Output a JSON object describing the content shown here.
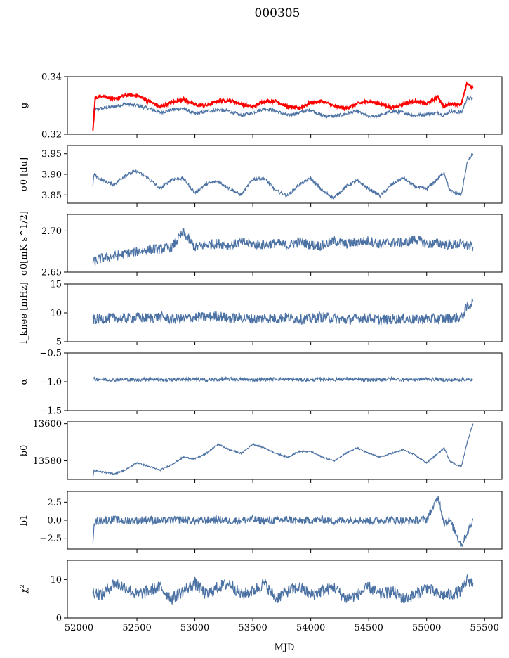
{
  "figure": {
    "title": "000305",
    "xlabel": "MJD",
    "colors": {
      "series": "#4c72a4",
      "highlight": "#ff0000"
    }
  },
  "chart_data": [
    {
      "type": "line",
      "id": "g",
      "ylabel": "g",
      "xlim": [
        51900,
        55650
      ],
      "ylim": [
        0.32,
        0.34
      ],
      "yticks": [
        0.32,
        0.34
      ],
      "yticklabels": [
        "0.32",
        "0.34"
      ],
      "series": [
        {
          "x": [
            52120,
            52130,
            52200,
            52300,
            52400,
            52500,
            52600,
            52700,
            52800,
            52900,
            53000,
            53100,
            53200,
            53300,
            53400,
            53500,
            53600,
            53700,
            53800,
            53900,
            54000,
            54100,
            54200,
            54300,
            54400,
            54500,
            54600,
            54700,
            54800,
            54900,
            55000,
            55100,
            55150,
            55200,
            55300,
            55350,
            55400
          ],
          "y": [
            0.3255,
            0.3285,
            0.329,
            0.3295,
            0.3305,
            0.33,
            0.329,
            0.3275,
            0.3285,
            0.329,
            0.327,
            0.328,
            0.3285,
            0.328,
            0.3265,
            0.3275,
            0.329,
            0.328,
            0.3265,
            0.3275,
            0.3285,
            0.3265,
            0.3262,
            0.327,
            0.328,
            0.326,
            0.3265,
            0.328,
            0.3275,
            0.3265,
            0.327,
            0.3275,
            0.3265,
            0.328,
            0.3275,
            0.3325,
            0.3325
          ]
        },
        {
          "x": [
            52120,
            52140,
            52200,
            52300,
            52400,
            52500,
            52600,
            52700,
            52800,
            52900,
            53000,
            53100,
            53200,
            53300,
            53400,
            53500,
            53600,
            53700,
            53800,
            53900,
            54000,
            54100,
            54200,
            54300,
            54400,
            54500,
            54600,
            54700,
            54800,
            54900,
            55000,
            55100,
            55150,
            55200,
            55300,
            55350,
            55400
          ],
          "y": [
            0.321,
            0.3325,
            0.3335,
            0.332,
            0.3335,
            0.3335,
            0.3315,
            0.3295,
            0.331,
            0.3322,
            0.3302,
            0.33,
            0.3315,
            0.3318,
            0.3305,
            0.3295,
            0.3315,
            0.3315,
            0.3295,
            0.329,
            0.331,
            0.3315,
            0.3298,
            0.329,
            0.3305,
            0.3315,
            0.3305,
            0.3292,
            0.3305,
            0.3315,
            0.3305,
            0.333,
            0.3295,
            0.3305,
            0.3305,
            0.3378,
            0.336
          ]
        }
      ]
    },
    {
      "type": "line",
      "id": "sigma0-du",
      "ylabel": "σ0 [du]",
      "xlim": [
        51900,
        55650
      ],
      "ylim": [
        3.83,
        3.97
      ],
      "yticks": [
        3.85,
        3.9,
        3.95
      ],
      "yticklabels": [
        "3.85",
        "3.90",
        "3.95"
      ],
      "series": [
        {
          "x": [
            52120,
            52130,
            52200,
            52300,
            52400,
            52500,
            52600,
            52700,
            52800,
            52900,
            53000,
            53100,
            53200,
            53300,
            53400,
            53500,
            53600,
            53700,
            53800,
            53900,
            54000,
            54100,
            54200,
            54300,
            54400,
            54500,
            54600,
            54700,
            54800,
            54900,
            55000,
            55100,
            55150,
            55200,
            55300,
            55350,
            55400
          ],
          "y": [
            3.875,
            3.9,
            3.885,
            3.875,
            3.898,
            3.908,
            3.89,
            3.865,
            3.888,
            3.89,
            3.855,
            3.877,
            3.883,
            3.865,
            3.85,
            3.888,
            3.89,
            3.86,
            3.848,
            3.875,
            3.89,
            3.86,
            3.843,
            3.87,
            3.885,
            3.865,
            3.848,
            3.875,
            3.892,
            3.87,
            3.865,
            3.89,
            3.905,
            3.86,
            3.85,
            3.93,
            3.95
          ]
        }
      ]
    },
    {
      "type": "line",
      "id": "sigma0-mk",
      "ylabel": "σ0[mK s^1/2]",
      "xlim": [
        51900,
        55650
      ],
      "ylim": [
        2.65,
        2.72
      ],
      "yticks": [
        2.65,
        2.7
      ],
      "yticklabels": [
        "2.65",
        "2.70"
      ],
      "series": [
        {
          "x": [
            52120,
            52200,
            52300,
            52400,
            52500,
            52600,
            52700,
            52800,
            52900,
            53000,
            53100,
            53200,
            53300,
            53400,
            53500,
            53600,
            53700,
            53800,
            53900,
            54000,
            54100,
            54200,
            54300,
            54400,
            54500,
            54600,
            54700,
            54800,
            54900,
            55000,
            55100,
            55200,
            55300,
            55350,
            55400
          ],
          "y": [
            2.662,
            2.667,
            2.669,
            2.672,
            2.675,
            2.677,
            2.678,
            2.68,
            2.698,
            2.68,
            2.683,
            2.685,
            2.682,
            2.686,
            2.684,
            2.683,
            2.685,
            2.682,
            2.687,
            2.683,
            2.682,
            2.688,
            2.684,
            2.686,
            2.688,
            2.684,
            2.686,
            2.685,
            2.69,
            2.684,
            2.685,
            2.683,
            2.684,
            2.682,
            2.68
          ]
        }
      ]
    },
    {
      "type": "line",
      "id": "fknee",
      "ylabel": "f_knee [mHz]",
      "xlim": [
        51900,
        55650
      ],
      "ylim": [
        5,
        15
      ],
      "yticks": [
        5,
        10,
        15
      ],
      "yticklabels": [
        "5",
        "10",
        "15"
      ],
      "series": [
        {
          "x": [
            52120,
            52200,
            52300,
            52400,
            52500,
            52600,
            52700,
            52800,
            52900,
            53000,
            53100,
            53200,
            53300,
            53400,
            53500,
            53600,
            53700,
            53800,
            53900,
            54000,
            54100,
            54200,
            54300,
            54400,
            54500,
            54600,
            54700,
            54800,
            54900,
            55000,
            55100,
            55200,
            55300,
            55350,
            55400
          ],
          "y": [
            8.8,
            9.0,
            9.1,
            9.0,
            9.2,
            9.1,
            9.3,
            8.9,
            9.0,
            9.3,
            9.2,
            9.5,
            9.0,
            9.2,
            8.9,
            9.1,
            9.0,
            9.2,
            8.9,
            9.0,
            9.3,
            9.0,
            8.8,
            9.0,
            9.1,
            8.8,
            8.9,
            9.0,
            8.8,
            9.0,
            8.9,
            9.1,
            9.2,
            11.0,
            12.0
          ]
        }
      ]
    },
    {
      "type": "line",
      "id": "alpha",
      "ylabel": "α",
      "xlim": [
        51900,
        55650
      ],
      "ylim": [
        -1.5,
        -0.5
      ],
      "yticks": [
        -1.5,
        -1.0,
        -0.5
      ],
      "yticklabels": [
        "−1.5",
        "−1.0",
        "−0.5"
      ],
      "series": [
        {
          "x": [
            52120,
            52200,
            52300,
            52400,
            52500,
            52600,
            52700,
            52800,
            52900,
            53000,
            53100,
            53200,
            53300,
            53400,
            53500,
            53600,
            53700,
            53800,
            53900,
            54000,
            54100,
            54200,
            54300,
            54400,
            54500,
            54600,
            54700,
            54800,
            54900,
            55000,
            55100,
            55200,
            55300,
            55400
          ],
          "y": [
            -0.95,
            -0.96,
            -0.97,
            -0.96,
            -0.97,
            -0.95,
            -0.97,
            -0.96,
            -0.95,
            -0.96,
            -0.97,
            -0.96,
            -0.95,
            -0.96,
            -0.97,
            -0.96,
            -0.95,
            -0.96,
            -0.96,
            -0.97,
            -0.95,
            -0.96,
            -0.95,
            -0.96,
            -0.97,
            -0.96,
            -0.95,
            -0.96,
            -0.96,
            -0.95,
            -0.96,
            -0.97,
            -0.96,
            -0.97
          ]
        }
      ]
    },
    {
      "type": "line",
      "id": "b0",
      "ylabel": "b0",
      "xlim": [
        51900,
        55650
      ],
      "ylim": [
        13570,
        13601
      ],
      "yticks": [
        13580,
        13600
      ],
      "yticklabels": [
        "13580",
        "13600"
      ],
      "series": [
        {
          "x": [
            52120,
            52130,
            52200,
            52300,
            52400,
            52500,
            52600,
            52700,
            52800,
            52900,
            53000,
            53100,
            53200,
            53300,
            53400,
            53500,
            53600,
            53700,
            53800,
            53900,
            54000,
            54100,
            54200,
            54300,
            54400,
            54500,
            54600,
            54700,
            54800,
            54900,
            55000,
            55100,
            55150,
            55200,
            55250,
            55300,
            55350,
            55400
          ],
          "y": [
            13571,
            13575,
            13574,
            13573,
            13575,
            13579,
            13577,
            13575,
            13578,
            13582,
            13581,
            13584,
            13589,
            13586,
            13584,
            13589,
            13587,
            13584,
            13582,
            13585,
            13585,
            13582,
            13580,
            13584,
            13587,
            13584,
            13582,
            13584,
            13586,
            13583,
            13579,
            13584,
            13587,
            13580,
            13578,
            13577,
            13590,
            13600
          ]
        }
      ]
    },
    {
      "type": "line",
      "id": "b1",
      "ylabel": "b1",
      "xlim": [
        51900,
        55650
      ],
      "ylim": [
        -4,
        4
      ],
      "yticks": [
        -2.5,
        0,
        2.5
      ],
      "yticklabels": [
        "−2.5",
        "0.0",
        "2.5"
      ],
      "series": [
        {
          "x": [
            52120,
            52130,
            52200,
            52300,
            52400,
            52500,
            52600,
            52700,
            52800,
            52900,
            53000,
            53100,
            53200,
            53300,
            53400,
            53500,
            53600,
            53700,
            53800,
            53900,
            54000,
            54100,
            54200,
            54300,
            54400,
            54500,
            54600,
            54700,
            54800,
            54900,
            55000,
            55100,
            55150,
            55200,
            55300,
            55400
          ],
          "y": [
            -2.8,
            -0.3,
            0.0,
            0.1,
            -0.1,
            0.0,
            0.1,
            -0.1,
            0.0,
            0.1,
            -0.1,
            0.0,
            0.1,
            -0.1,
            0.0,
            0.1,
            -0.1,
            0.0,
            0.1,
            -0.1,
            0.0,
            0.1,
            -0.1,
            0.0,
            0.1,
            -0.1,
            0.0,
            0.1,
            -0.1,
            0.0,
            0.1,
            3.2,
            -0.3,
            0.0,
            -3.5,
            0.0
          ]
        }
      ]
    },
    {
      "type": "line",
      "id": "chi2",
      "ylabel": "χ²",
      "xlim": [
        51900,
        55650
      ],
      "ylim": [
        0,
        15
      ],
      "yticks": [
        0,
        10
      ],
      "yticklabels": [
        "0",
        "10"
      ],
      "xticks": [
        52000,
        52500,
        53000,
        53500,
        54000,
        54500,
        55000,
        55500
      ],
      "xticklabels": [
        "52000",
        "52500",
        "53000",
        "53500",
        "54000",
        "54500",
        "55000",
        "55500"
      ],
      "series": [
        {
          "x": [
            52120,
            52200,
            52300,
            52400,
            52500,
            52600,
            52700,
            52800,
            52900,
            53000,
            53100,
            53200,
            53300,
            53400,
            53500,
            53600,
            53700,
            53800,
            53900,
            54000,
            54100,
            54200,
            54300,
            54400,
            54500,
            54600,
            54700,
            54800,
            54900,
            55000,
            55100,
            55200,
            55300,
            55350,
            55400
          ],
          "y": [
            7,
            6,
            9,
            8,
            6,
            7,
            8,
            5,
            7,
            9,
            6,
            8,
            9,
            6,
            7,
            9,
            5,
            7,
            8,
            6,
            7,
            8,
            5,
            6,
            8,
            6,
            7,
            5,
            6,
            8,
            6,
            6,
            7,
            10,
            9
          ]
        }
      ]
    }
  ]
}
